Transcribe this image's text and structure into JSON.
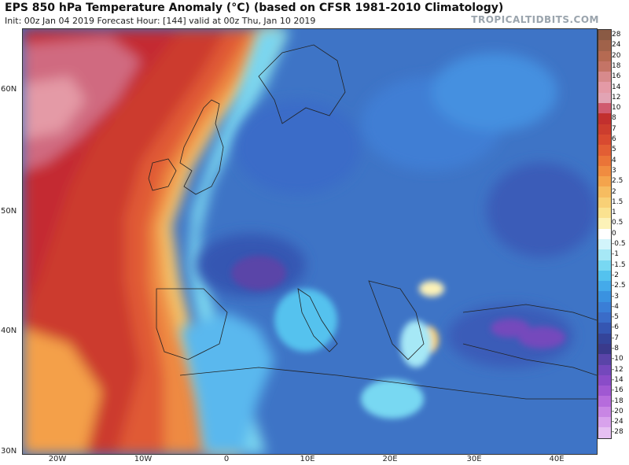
{
  "header": {
    "title": "EPS 850 hPa Temperature Anomaly (°C) (based on CFSR 1981-2010 Climatology)",
    "subtitle": "Init: 00z Jan 04 2019   Forecast Hour: [144]   valid at 00z Thu, Jan 10 2019",
    "brand": "TROPICALTIDBITS.COM"
  },
  "map": {
    "lat_labels": [
      "60N",
      "50N",
      "40N",
      "30N"
    ],
    "lon_labels": [
      "20W",
      "10W",
      "0",
      "10E",
      "20E",
      "30E",
      "40E"
    ]
  },
  "colorbar": {
    "labels": [
      "28",
      "24",
      "20",
      "18",
      "16",
      "14",
      "12",
      "10",
      "8",
      "7",
      "6",
      "5",
      "4",
      "3",
      "2.5",
      "2",
      "1.5",
      "1",
      "0.5",
      "0",
      "-0.5",
      "-1",
      "-1.5",
      "-2",
      "-2.5",
      "-3",
      "-4",
      "-5",
      "-6",
      "-7",
      "-8",
      "-10",
      "-12",
      "-14",
      "-16",
      "-18",
      "-20",
      "-24",
      "-28"
    ],
    "colors": [
      "#8a5a44",
      "#a0624a",
      "#b56a52",
      "#c47466",
      "#d78a8c",
      "#e49aa6",
      "#e2a4b4",
      "#d05a6e",
      "#c2302e",
      "#cc3d2e",
      "#d84a30",
      "#e25e34",
      "#ea7438",
      "#f08c40",
      "#f4a44c",
      "#f6bc60",
      "#f8d076",
      "#fae290",
      "#fcf2b8",
      "#ffffff",
      "#d2f4fb",
      "#a6e8f6",
      "#78d8f2",
      "#54c2ee",
      "#44aaea",
      "#3a92e0",
      "#3a7ed6",
      "#3a6cc8",
      "#3556b2",
      "#34449a",
      "#3a3a8c",
      "#5a44a8",
      "#7448bc",
      "#8a4cc8",
      "#a058d2",
      "#b66cdc",
      "#c886e4",
      "#d8a2ec",
      "#e6c0f2"
    ]
  }
}
